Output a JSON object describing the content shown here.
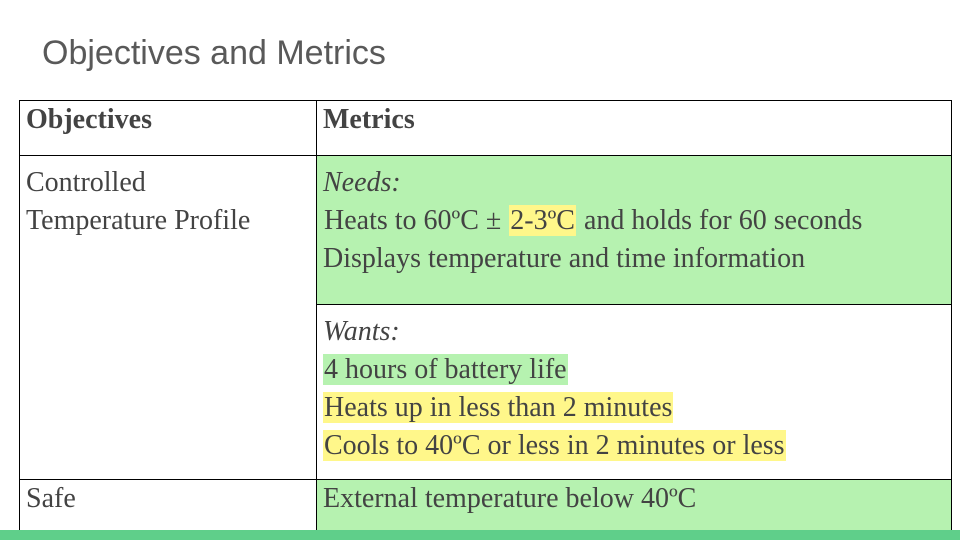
{
  "title": "Objectives and Metrics",
  "table": {
    "headers": [
      "Objectives",
      "Metrics"
    ],
    "row1": {
      "objective_line1": "Controlled",
      "objective_line2": "Temperature Profile",
      "needs": {
        "label": "Needs:",
        "line1_a": "Heats to 60ºC ± ",
        "line1_b": "2-3ºC",
        "line1_c": " and holds for 60 seconds",
        "line2": "Displays temperature and time information"
      },
      "wants": {
        "label": "Wants:",
        "line1": "4 hours of battery life",
        "line2": "Heats up in less than 2 minutes",
        "line3": "Cools to 40ºC or less in 2 minutes or less"
      }
    },
    "row2": {
      "objective": "Safe",
      "metric": "External temperature below 40ºC"
    }
  },
  "colors": {
    "green_highlight": "#b6f2b0",
    "yellow_highlight": "#fff78a",
    "footer_bar": "#5fcf8a"
  }
}
